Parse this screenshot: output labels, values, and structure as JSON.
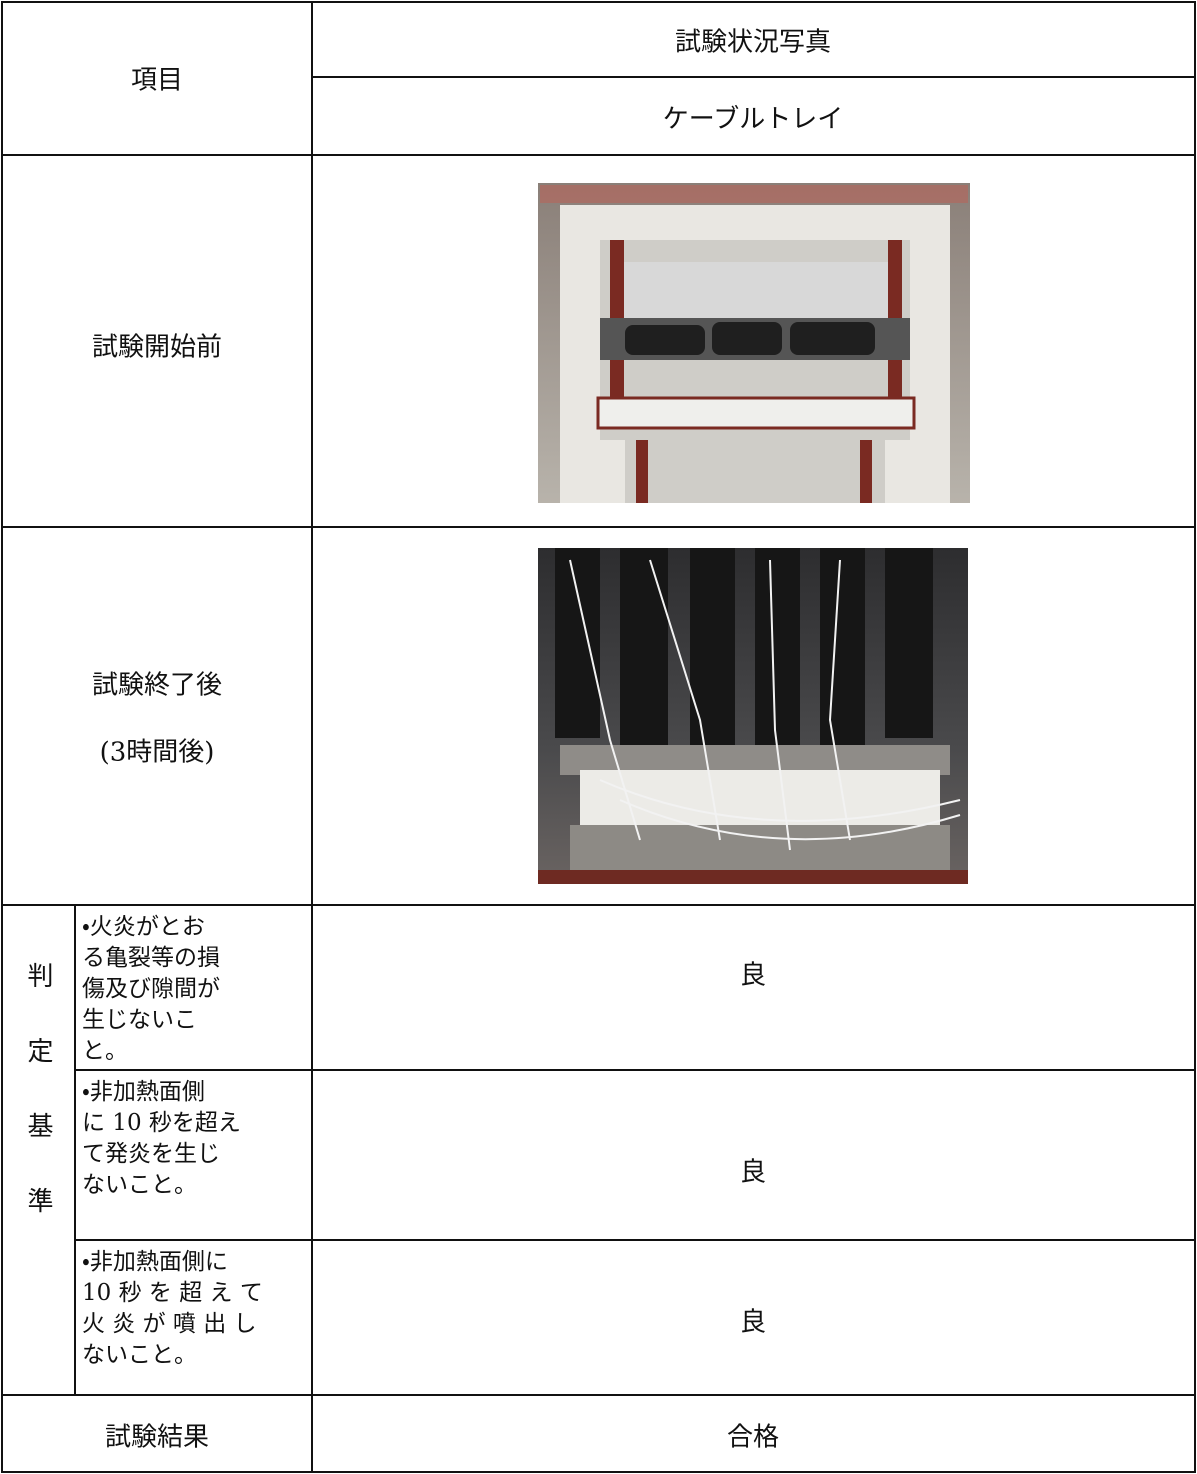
{
  "table": {
    "header": {
      "item": "項目",
      "photo_heading": "試験状況写真",
      "subject": "ケーブルトレイ"
    },
    "rows": [
      {
        "label": "試験開始前"
      },
      {
        "label": "試験終了後",
        "note": "(3時間後)"
      }
    ],
    "criteria": {
      "label": "判定基準",
      "items": [
        {
          "lines": [
            "・火炎がとお",
            "る亀裂等の損",
            "傷及び隙間が",
            "生じないこ",
            "と。"
          ],
          "result": "良"
        },
        {
          "lines": [
            "・非加熱面側",
            "に 10 秒を超え",
            "て発炎を生じ",
            "ないこと。"
          ],
          "result": "良"
        },
        {
          "lines": [
            "・非加熱面側に",
            "10 秒 を 超 え て",
            "火 炎 が 噴 出 し",
            "ないこと。"
          ],
          "result": "良"
        }
      ]
    },
    "result": {
      "label": "試験結果",
      "value": "合格"
    }
  }
}
